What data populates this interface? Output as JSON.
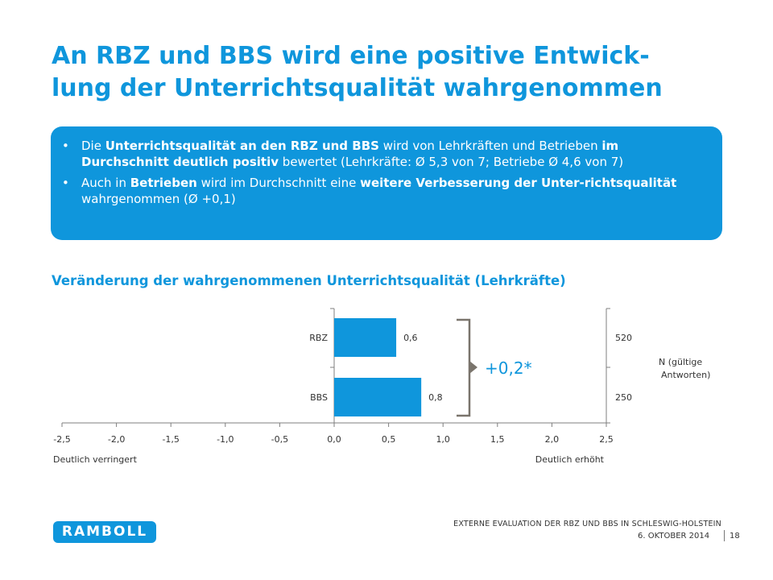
{
  "title": {
    "line1": "An RBZ und BBS wird eine positive Entwick-",
    "line2": "lung der Unterrichtsqualität wahrgenommen"
  },
  "infobox": {
    "bullet1": {
      "t1": "Die ",
      "b1": "Unterrichtsqualität an den RBZ und BBS",
      "t2": " wird von Lehrkräften und Betrieben ",
      "b2": "im Durchschnitt deutlich positiv",
      "t3": " bewertet (Lehrkräfte: Ø 5,3 von 7; Betriebe Ø 4,6 von 7)"
    },
    "bullet2": {
      "t1": "Auch in ",
      "b1": "Betrieben",
      "t2": " wird im Durchschnitt eine ",
      "b2": "weitere Verbesserung der Unter-richtsqualität",
      "t3": " wahrgenommen (Ø +0,1)"
    }
  },
  "chart_title": "Veränderung der wahrgenommenen Unterrichtsqualität (Lehrkräfte)",
  "chart_data": {
    "type": "bar",
    "orientation": "horizontal",
    "categories": [
      "RBZ",
      "BBS"
    ],
    "values": [
      0.57,
      0.8
    ],
    "value_labels": [
      "0,6",
      "0,8"
    ],
    "n_values": [
      "520",
      "250"
    ],
    "n_label_line1": "N (gültige",
    "n_label_line2": "Antworten)",
    "xlim": [
      -2.5,
      2.5
    ],
    "xticks": [
      "-2,5",
      "-2,0",
      "-1,5",
      "-1,0",
      "-0,5",
      "0,0",
      "0,5",
      "1,0",
      "1,5",
      "2,0",
      "2,5"
    ],
    "xtick_values": [
      -2.5,
      -2.0,
      -1.5,
      -1.0,
      -0.5,
      0.0,
      0.5,
      1.0,
      1.5,
      2.0,
      2.5
    ],
    "left_axis_note": "Deutlich  verringert",
    "right_axis_note": "Deutlich  erhöht",
    "difference_label": "+0,2*",
    "bar_color": "#0f96dc",
    "bracket_color": "#7a746c",
    "difference_color": "#0f96dc"
  },
  "footer": {
    "line": "EXTERNE EVALUATION DER RBZ UND BBS IN SCHLESWIG-HOLSTEIN",
    "date": "6. OKTOBER 2014",
    "page": "18",
    "logo": "RAMBOLL"
  }
}
